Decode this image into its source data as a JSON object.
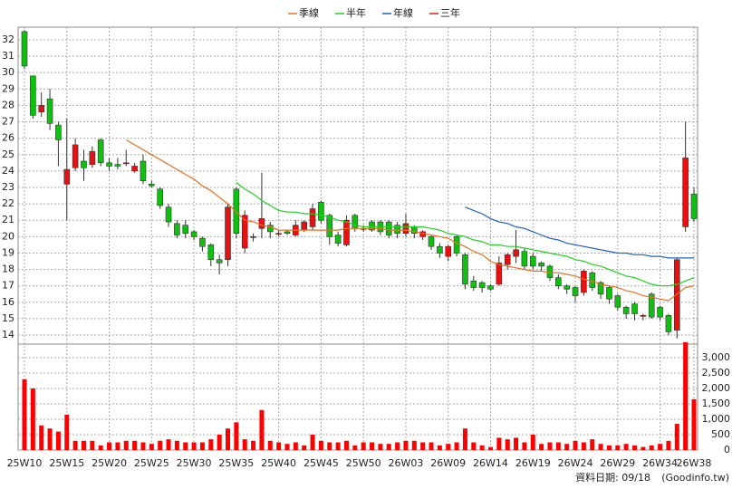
{
  "chart_data": {
    "type": "candlestick",
    "up_color": "#e81010",
    "down_color": "#10c010",
    "categories": [
      "25W10",
      null,
      null,
      null,
      null,
      "25W15",
      null,
      null,
      null,
      null,
      "25W20",
      null,
      null,
      null,
      null,
      "25W25",
      null,
      null,
      null,
      null,
      "25W30",
      null,
      null,
      null,
      null,
      "25W35",
      null,
      null,
      null,
      null,
      "25W40",
      null,
      null,
      null,
      null,
      "25W45",
      null,
      null,
      null,
      null,
      "25W50",
      null,
      null,
      null,
      null,
      "26W03",
      null,
      null,
      null,
      null,
      "26W09",
      null,
      null,
      null,
      null,
      "26W14",
      null,
      null,
      null,
      null,
      "26W19",
      null,
      null,
      null,
      null,
      "26W24",
      null,
      null,
      null,
      null,
      "26W29",
      null,
      null,
      null,
      null,
      "26W34",
      null,
      null,
      null,
      "26W38"
    ],
    "open": [
      32.5,
      29.8,
      27.6,
      28.4,
      26.8,
      23.2,
      24.2,
      24.6,
      24.4,
      25.9,
      24.5,
      24.4,
      24.5,
      24.0,
      24.6,
      23.2,
      22.9,
      21.8,
      20.8,
      20.7,
      20.3,
      19.9,
      19.5,
      18.6,
      18.6,
      22.9,
      19.3,
      20.0,
      20.5,
      20.7,
      20.2,
      20.3,
      20.1,
      20.4,
      20.6,
      22.1,
      21.3,
      20.1,
      19.5,
      21.3,
      20.5,
      20.9,
      20.9,
      20.9,
      20.7,
      20.2,
      20.6,
      20.0,
      20.0,
      19.4,
      18.8,
      20.0,
      18.9,
      17.3,
      17.2,
      17.0,
      17.1,
      18.3,
      18.8,
      19.1,
      18.8,
      18.4,
      18.2,
      17.5,
      17.0,
      16.9,
      16.6,
      17.8,
      17.2,
      16.9,
      16.4,
      15.7,
      15.9,
      15.2,
      16.5,
      15.7,
      15.2,
      14.3,
      20.6,
      22.6
    ],
    "high": [
      32.6,
      29.8,
      28.8,
      29.0,
      27.0,
      27.2,
      26.0,
      25.3,
      25.5,
      26.0,
      24.8,
      24.8,
      25.3,
      24.5,
      25.0,
      23.4,
      23.0,
      22.0,
      21.0,
      21.0,
      20.4,
      20.0,
      19.6,
      18.9,
      22.0,
      23.0,
      21.6,
      20.2,
      23.9,
      20.9,
      20.4,
      20.4,
      21.0,
      21.0,
      22.0,
      22.2,
      21.4,
      20.3,
      21.3,
      21.4,
      20.7,
      21.0,
      21.0,
      21.0,
      20.9,
      21.4,
      20.7,
      20.4,
      20.1,
      19.6,
      19.5,
      20.1,
      19.0,
      17.6,
      17.3,
      17.1,
      18.8,
      19.0,
      20.4,
      19.3,
      19.0,
      18.5,
      18.3,
      17.7,
      17.1,
      17.0,
      18.0,
      17.9,
      17.3,
      17.0,
      16.5,
      15.8,
      16.0,
      15.3,
      16.6,
      15.8,
      15.3,
      18.7,
      27.0,
      23.0
    ],
    "low": [
      30.2,
      27.2,
      27.3,
      26.5,
      24.3,
      21.0,
      24.0,
      23.4,
      24.2,
      24.3,
      24.0,
      24.1,
      24.3,
      23.9,
      23.2,
      23.0,
      21.7,
      20.6,
      19.9,
      19.9,
      19.8,
      19.1,
      18.2,
      17.7,
      18.2,
      19.9,
      19.0,
      19.7,
      19.9,
      19.9,
      20.0,
      20.1,
      20.0,
      20.3,
      20.4,
      20.8,
      19.5,
      19.4,
      19.4,
      20.3,
      20.3,
      20.3,
      20.1,
      19.9,
      19.9,
      20.0,
      19.9,
      19.8,
      19.2,
      18.7,
      18.5,
      18.8,
      16.8,
      16.7,
      16.6,
      16.7,
      17.0,
      18.0,
      18.4,
      18.0,
      18.0,
      17.9,
      17.3,
      16.8,
      16.5,
      16.0,
      16.4,
      16.7,
      16.2,
      15.9,
      15.5,
      15.0,
      14.9,
      14.9,
      15.0,
      14.9,
      14.0,
      13.8,
      20.3,
      20.9
    ],
    "close": [
      30.4,
      27.4,
      28.0,
      26.9,
      25.9,
      24.1,
      25.6,
      24.2,
      25.2,
      24.5,
      24.3,
      24.3,
      24.5,
      24.3,
      23.4,
      23.1,
      21.9,
      20.9,
      20.1,
      20.2,
      20.0,
      19.4,
      18.6,
      18.4,
      21.8,
      20.2,
      21.3,
      20.0,
      21.1,
      20.3,
      20.2,
      20.2,
      20.7,
      20.9,
      21.7,
      21.0,
      20.0,
      19.6,
      21.0,
      20.5,
      20.5,
      20.4,
      20.3,
      20.1,
      20.2,
      20.8,
      20.2,
      20.3,
      19.4,
      19.0,
      19.4,
      19.0,
      17.1,
      16.9,
      16.9,
      16.8,
      18.4,
      18.9,
      19.2,
      18.2,
      18.2,
      18.2,
      17.5,
      17.0,
      16.8,
      16.4,
      17.9,
      16.9,
      16.5,
      16.2,
      15.7,
      15.3,
      15.3,
      15.2,
      15.1,
      15.1,
      14.2,
      18.6,
      24.8,
      21.1
    ],
    "series": [
      {
        "name": "季線",
        "color": "#e87020",
        "values": [
          null,
          null,
          null,
          null,
          null,
          null,
          null,
          null,
          null,
          null,
          null,
          null,
          25.9,
          25.6,
          25.3,
          25.0,
          24.7,
          24.4,
          24.1,
          23.8,
          23.5,
          23.1,
          22.8,
          22.4,
          22.0,
          21.5,
          21.0,
          20.9,
          20.7,
          20.6,
          20.4,
          20.4,
          20.4,
          20.4,
          20.4,
          20.4,
          20.4,
          20.4,
          20.5,
          20.5,
          20.5,
          20.5,
          20.5,
          20.4,
          20.4,
          20.4,
          20.3,
          20.2,
          20.1,
          20.0,
          19.9,
          19.6,
          19.4,
          19.1,
          18.9,
          18.5,
          18.3,
          18.2,
          18.1,
          18.0,
          17.9,
          17.9,
          17.8,
          17.8,
          17.7,
          17.6,
          17.4,
          17.3,
          17.1,
          17.0,
          16.9,
          16.7,
          16.6,
          16.4,
          16.3,
          16.2,
          16.1,
          16.5,
          16.9,
          17.0
        ]
      },
      {
        "name": "半年",
        "color": "#20d020",
        "values": [
          null,
          null,
          null,
          null,
          null,
          null,
          null,
          null,
          null,
          null,
          null,
          null,
          null,
          null,
          null,
          null,
          null,
          null,
          null,
          null,
          null,
          null,
          null,
          null,
          null,
          23.3,
          22.9,
          22.6,
          22.2,
          21.9,
          21.6,
          21.5,
          21.5,
          21.4,
          21.4,
          21.3,
          21.2,
          21.0,
          20.9,
          20.7,
          20.6,
          20.6,
          20.6,
          20.6,
          20.6,
          20.6,
          20.6,
          20.6,
          20.5,
          20.4,
          20.2,
          20.1,
          20.0,
          19.8,
          19.7,
          19.5,
          19.5,
          19.4,
          19.4,
          19.3,
          19.2,
          19.1,
          19.0,
          18.9,
          18.8,
          18.6,
          18.5,
          18.3,
          18.2,
          18.0,
          17.8,
          17.6,
          17.5,
          17.3,
          17.1,
          17.0,
          17.0,
          17.1,
          17.3,
          17.5
        ]
      },
      {
        "name": "年線",
        "color": "#2060c0",
        "values": [
          null,
          null,
          null,
          null,
          null,
          null,
          null,
          null,
          null,
          null,
          null,
          null,
          null,
          null,
          null,
          null,
          null,
          null,
          null,
          null,
          null,
          null,
          null,
          null,
          null,
          null,
          null,
          null,
          null,
          null,
          null,
          null,
          null,
          null,
          null,
          null,
          null,
          null,
          null,
          null,
          null,
          null,
          null,
          null,
          null,
          null,
          null,
          null,
          null,
          null,
          null,
          null,
          21.8,
          21.6,
          21.4,
          21.1,
          20.9,
          20.8,
          20.6,
          20.5,
          20.3,
          20.1,
          19.9,
          19.8,
          19.6,
          19.5,
          19.4,
          19.3,
          19.2,
          19.1,
          19.0,
          19.0,
          18.9,
          18.9,
          18.8,
          18.8,
          18.7,
          18.7,
          18.7,
          18.7
        ]
      },
      {
        "name": "三年",
        "color": "#e02020",
        "values": [
          null,
          null,
          null,
          null,
          null,
          null,
          null,
          null,
          null,
          null,
          null,
          null,
          null,
          null,
          null,
          null,
          null,
          null,
          null,
          null,
          null,
          null,
          null,
          null,
          null,
          null,
          null,
          null,
          null,
          null,
          null,
          null,
          null,
          null,
          null,
          null,
          null,
          null,
          null,
          null,
          null,
          null,
          null,
          null,
          null,
          null,
          null,
          null,
          null,
          null,
          null,
          null,
          null,
          null,
          null,
          null,
          null,
          null,
          null,
          null,
          null,
          null,
          null,
          null,
          null,
          null,
          null,
          null,
          null,
          null,
          null,
          null,
          null,
          null,
          null,
          null,
          null,
          null,
          null,
          null
        ]
      }
    ],
    "ylim": [
      13.45,
      32.77
    ],
    "yticks": [
      14,
      15,
      16,
      17,
      18,
      19,
      20,
      21,
      22,
      23,
      24,
      25,
      26,
      27,
      28,
      29,
      30,
      31,
      32
    ],
    "grid": true,
    "volume": {
      "color": "#ff0000",
      "values": [
        2300,
        2000,
        800,
        700,
        600,
        1150,
        300,
        300,
        300,
        150,
        250,
        250,
        300,
        300,
        250,
        200,
        300,
        350,
        300,
        250,
        250,
        250,
        350,
        500,
        700,
        900,
        350,
        300,
        1300,
        300,
        250,
        200,
        250,
        150,
        500,
        300,
        250,
        250,
        300,
        150,
        250,
        250,
        200,
        200,
        250,
        300,
        300,
        250,
        250,
        150,
        200,
        250,
        700,
        250,
        150,
        100,
        400,
        350,
        400,
        250,
        500,
        200,
        250,
        250,
        200,
        300,
        250,
        350,
        200,
        150,
        150,
        200,
        150,
        100,
        150,
        200,
        300,
        850,
        3500,
        1650
      ],
      "ylim": [
        0,
        3440
      ],
      "yticks": [
        0,
        500,
        {
          "value": 1000,
          "label": "1,000"
        },
        {
          "value": 1500,
          "label": "1,500"
        },
        {
          "value": 2000,
          "label": "2,000"
        },
        {
          "value": 2500,
          "label": "2,500"
        },
        {
          "value": 3000,
          "label": "3,000"
        }
      ]
    },
    "footer": [
      "資料日期: 09/18",
      "(Goodinfo.tw)"
    ]
  }
}
